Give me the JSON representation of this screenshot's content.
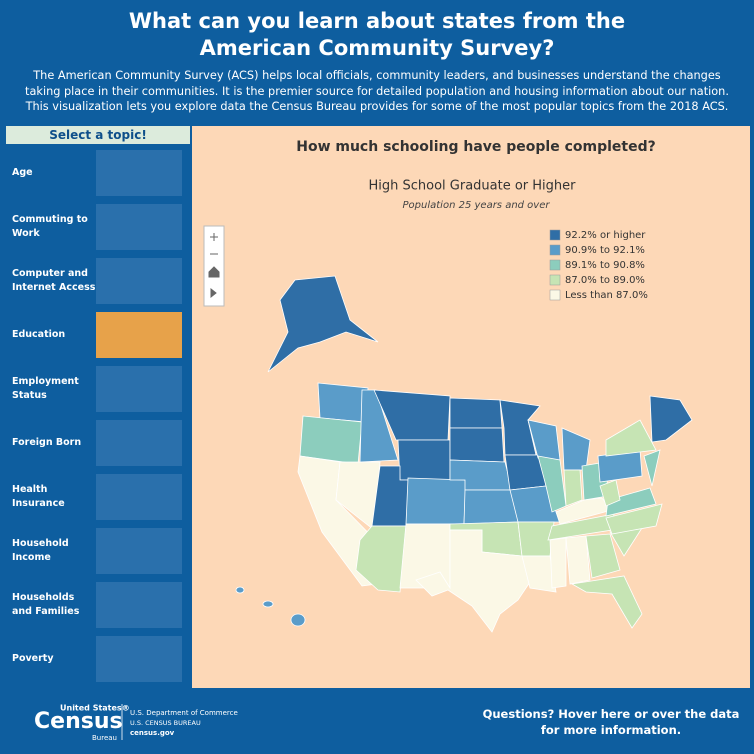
{
  "header": {
    "title_lines": [
      "What can you learn about states from the",
      "American Community Survey?"
    ],
    "description": "The American Community Survey (ACS) helps local officials, community leaders, and businesses understand the changes taking place in their communities. It is the premier source for detailed population and housing information about our nation. This visualization lets you explore data the Census Bureau provides for some of the most popular topics from the 2018 ACS."
  },
  "sidebar": {
    "heading": "Select a topic!",
    "topics": [
      "Age",
      "Commuting to Work",
      "Computer and Internet Access",
      "Education",
      "Employment Status",
      "Foreign Born",
      "Health Insurance",
      "Household Income",
      "Households and Families",
      "Poverty"
    ],
    "selected": 3
  },
  "map": {
    "title": "How much schooling have people completed?",
    "subtitle": "High School Graduate or Higher",
    "note": "Population 25 years and over",
    "legend": [
      {
        "label": "92.2% or higher",
        "color": "#2f6ea6"
      },
      {
        "label": "90.9% to 92.1%",
        "color": "#5a9cc9"
      },
      {
        "label": "89.1% to 90.8%",
        "color": "#8ccdbd"
      },
      {
        "label": "87.0% to 89.0%",
        "color": "#c6e4b4"
      },
      {
        "label": "Less than 87.0%",
        "color": "#fbf8e6"
      }
    ]
  },
  "footer": {
    "logo_top": "United States®",
    "logo_main": "Census",
    "logo_bottom": "Bureau",
    "dept": "U.S. Department of Commerce",
    "bureau": "U.S. CENSUS BUREAU",
    "site": "census.gov",
    "help": "Questions? Hover here or over the data for more information."
  }
}
